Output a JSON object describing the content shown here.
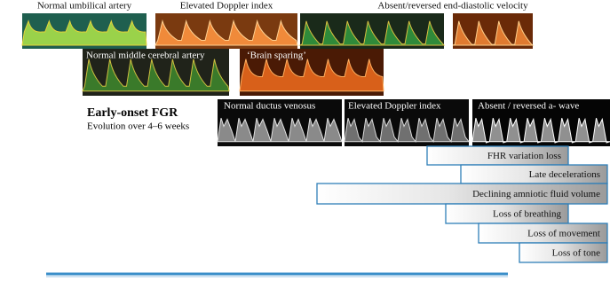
{
  "umbilical_artery": {
    "labels": [
      "Normal umbilical artery",
      "Elevated Doppler index",
      "Absent/reversed end-diastolic velocity"
    ]
  },
  "middle_cerebral_artery": {
    "labels": [
      "Normal middle cerebral artery",
      "‘Brain sparing’"
    ]
  },
  "title": "Early-onset FGR",
  "subtitle": "Evolution over 4–6 weeks",
  "ductus_venosus": {
    "labels": [
      "Normal ductus venosus",
      "Elevated Doppler index",
      "Absent / reversed a- wave"
    ]
  },
  "stages": [
    "FHR variation loss",
    "Late decelerations",
    "Declining amniotic fluid volume",
    "Loss of breathing",
    "Loss of movement",
    "Loss of tone"
  ]
}
